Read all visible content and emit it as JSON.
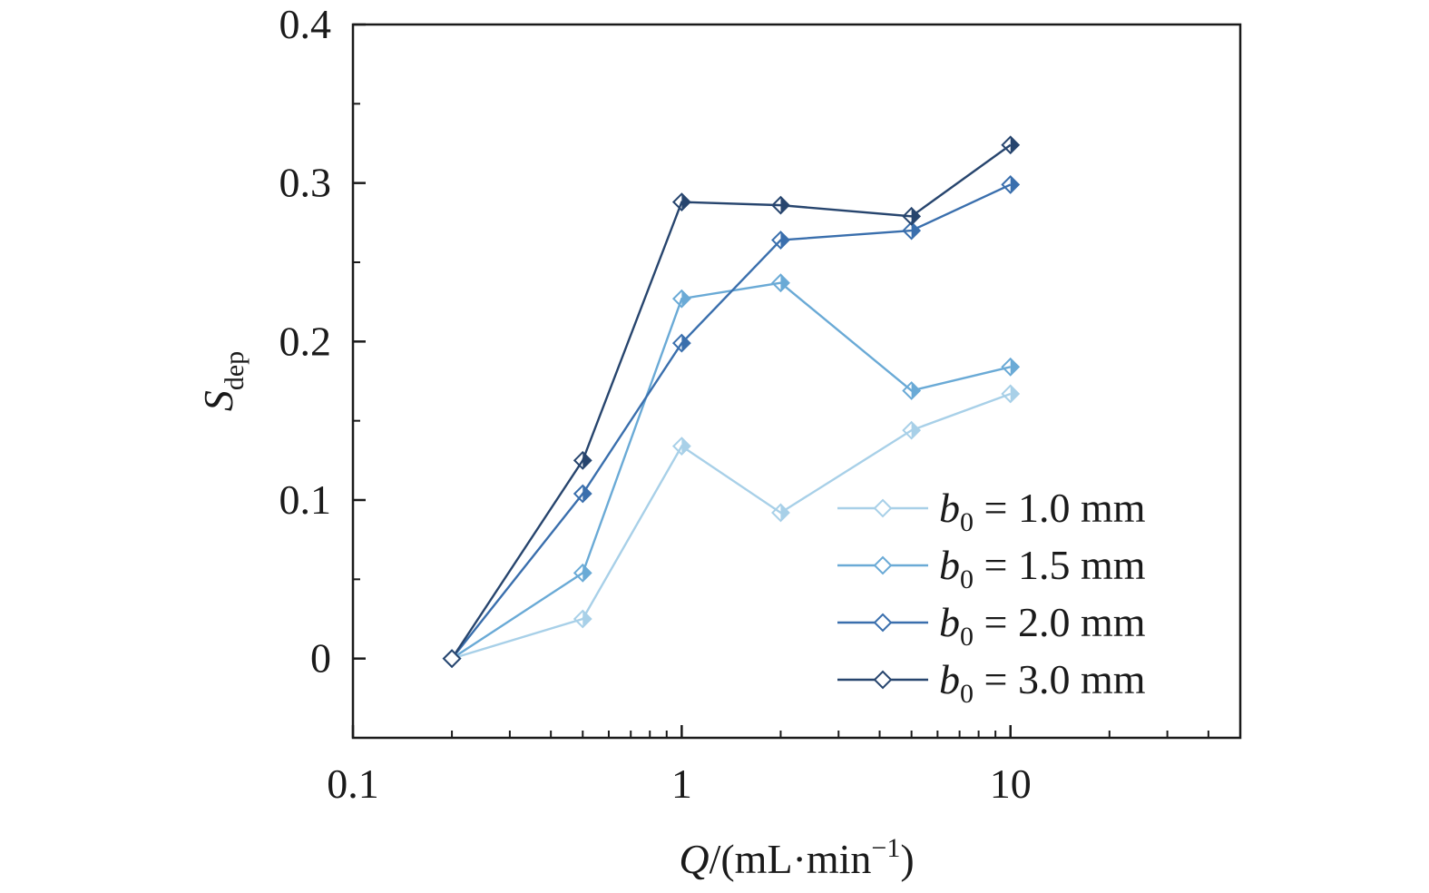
{
  "chart_data": {
    "type": "line",
    "title": "",
    "xlabel": {
      "symbol": "Q",
      "unit": "/(mL·min",
      "exponent": "−1",
      "close": ")"
    },
    "ylabel": {
      "symbol": "S",
      "subscript": "dep"
    },
    "xscale": "log",
    "xlim": [
      0.1,
      50
    ],
    "ylim": [
      -0.05,
      0.4
    ],
    "xticks": [
      {
        "value": 0.1,
        "label": "0.1"
      },
      {
        "value": 1,
        "label": "1"
      },
      {
        "value": 10,
        "label": "10"
      }
    ],
    "yticks": [
      {
        "value": 0,
        "label": "0"
      },
      {
        "value": 0.1,
        "label": "0.1"
      },
      {
        "value": 0.2,
        "label": "0.2"
      },
      {
        "value": 0.3,
        "label": "0.3"
      },
      {
        "value": 0.4,
        "label": "0.4"
      }
    ],
    "grid": false,
    "legend_position": "bottom-right",
    "marker": "half-filled-diamond",
    "series": [
      {
        "name": {
          "symbol": "b",
          "subscript": "0",
          "text": " = 1.0 mm"
        },
        "color": "#a8d0e8",
        "x": [
          0.2,
          0.5,
          1,
          2,
          5,
          10
        ],
        "y": [
          0,
          0.025,
          0.134,
          0.092,
          0.144,
          0.167
        ]
      },
      {
        "name": {
          "symbol": "b",
          "subscript": "0",
          "text": " = 1.5 mm"
        },
        "color": "#6aaad6",
        "x": [
          0.2,
          0.5,
          1,
          2,
          5,
          10
        ],
        "y": [
          0,
          0.054,
          0.227,
          0.237,
          0.169,
          0.184
        ]
      },
      {
        "name": {
          "symbol": "b",
          "subscript": "0",
          "text": " = 2.0 mm"
        },
        "color": "#3a6fad",
        "x": [
          0.2,
          0.5,
          1,
          2,
          5,
          10
        ],
        "y": [
          0,
          0.104,
          0.199,
          0.264,
          0.27,
          0.299
        ]
      },
      {
        "name": {
          "symbol": "b",
          "subscript": "0",
          "text": " = 3.0 mm"
        },
        "color": "#27456e",
        "x": [
          0.2,
          0.5,
          1,
          2,
          5,
          10
        ],
        "y": [
          0,
          0.125,
          0.288,
          0.286,
          0.279,
          0.324
        ]
      }
    ]
  }
}
